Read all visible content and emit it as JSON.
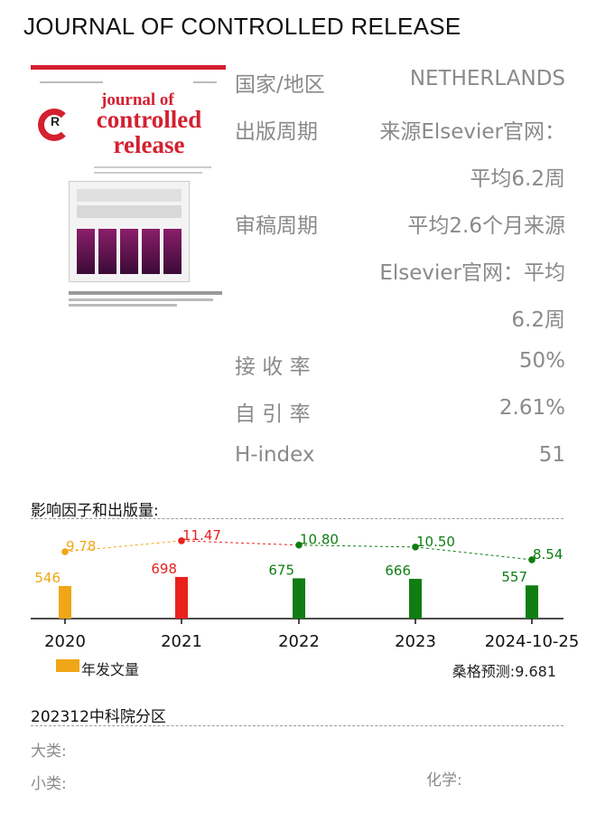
{
  "journal_title": "JOURNAL OF CONTROLLED RELEASE",
  "cover": {
    "text_journal": "journal of",
    "text_name": "controlled release"
  },
  "info": [
    {
      "label": "国家/地区",
      "lines": [
        "NETHERLANDS"
      ]
    },
    {
      "label": "出版周期",
      "lines": [
        "来源Elsevier官网：",
        "平均6.2周"
      ]
    },
    {
      "label": "审稿周期",
      "lines": [
        "平均2.6个月来源",
        "Elsevier官网：平均",
        "6.2周"
      ]
    },
    {
      "label": "接 收 率",
      "lines": [
        "50%"
      ]
    },
    {
      "label": "自 引 率",
      "lines": [
        "2.61%"
      ]
    },
    {
      "label": "H-index",
      "lines": [
        "51"
      ]
    }
  ],
  "impact": {
    "title": "影响因子和出版量:",
    "legend_label": "年发文量",
    "prediction": "桑格预测:9.681"
  },
  "cas": {
    "title": "202312中科院分区",
    "major_label": "大类:",
    "minor_label": "小类:",
    "minor_value": "化学:"
  },
  "colors": {
    "orange": "#f0a616",
    "red": "#e8211c",
    "green": "#0f7d12"
  },
  "chart_data": {
    "type": "bar",
    "categories": [
      "2020",
      "2021",
      "2022",
      "2023",
      "2024-10-25"
    ],
    "series": [
      {
        "name": "年发文量",
        "type": "bar",
        "values": [
          546,
          698,
          675,
          666,
          557
        ]
      },
      {
        "type": "line",
        "values": [
          9.78,
          11.47,
          10.8,
          10.5,
          8.54
        ]
      }
    ],
    "bar_colors": [
      "#f0a616",
      "#e8211c",
      "#0f7d12",
      "#0f7d12",
      "#0f7d12"
    ],
    "bar_labels": [
      "546",
      "698",
      "675",
      "666",
      "557"
    ],
    "line_labels": [
      "9.78",
      "11.47",
      "10.80",
      "10.50",
      "8.54"
    ],
    "ylim_bars": [
      0,
      1000
    ],
    "ylim_line": [
      0,
      13.5
    ]
  }
}
